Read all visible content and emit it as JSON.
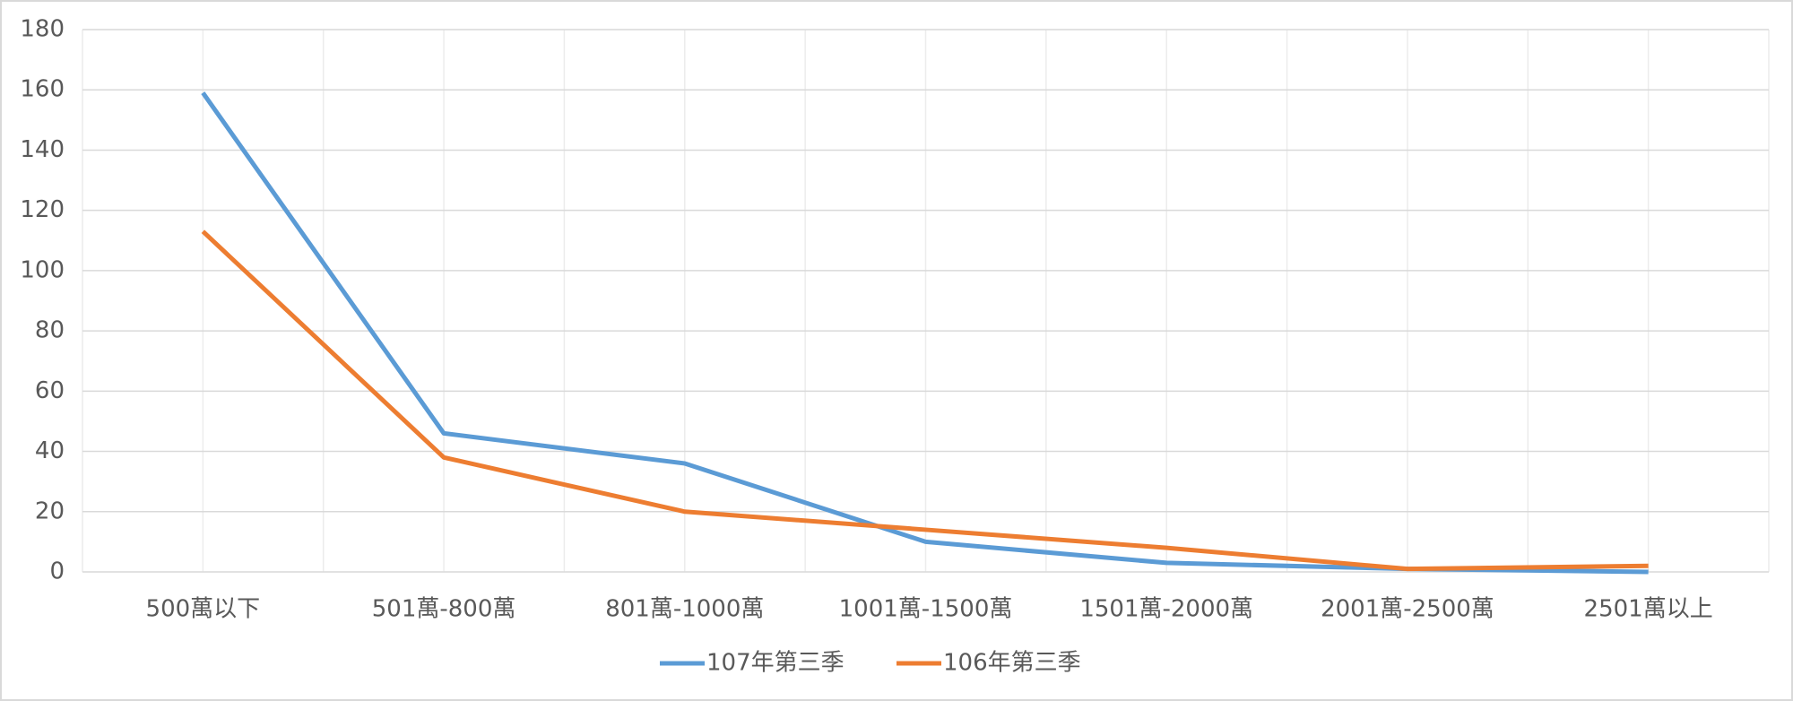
{
  "chart_data": {
    "type": "line",
    "categories": [
      "500萬以下",
      "501萬-800萬",
      "801萬-1000萬",
      "1001萬-1500萬",
      "1501萬-2000萬",
      "2001萬-2500萬",
      "2501萬以上"
    ],
    "series": [
      {
        "name": "107年第三季",
        "color": "#5b9bd5",
        "values": [
          159,
          46,
          36,
          10,
          3,
          1,
          0
        ]
      },
      {
        "name": "106年第三季",
        "color": "#ed7d31",
        "values": [
          113,
          38,
          20,
          14,
          8,
          1,
          2
        ]
      }
    ],
    "ylim": [
      0,
      180
    ],
    "yticks": [
      0,
      20,
      40,
      60,
      80,
      100,
      120,
      140,
      160,
      180
    ],
    "grid": true,
    "legend": "bottom"
  }
}
